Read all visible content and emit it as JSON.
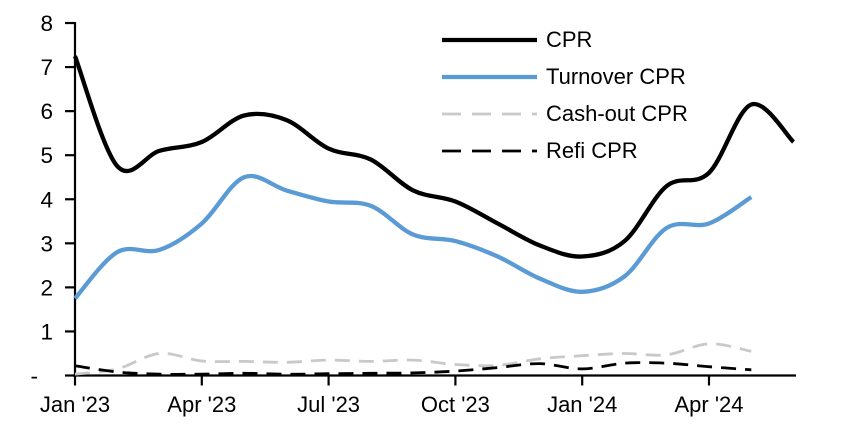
{
  "chart_data": {
    "type": "line",
    "title": "",
    "grid": false,
    "legend_position": "top-right-inside",
    "ylim": [
      0,
      8
    ],
    "y_tick_labels": [
      "8",
      "7",
      "6",
      "5",
      "4",
      "3",
      "2",
      "1",
      "-"
    ],
    "x_tick_labels": [
      "Jan '23",
      "Apr '23",
      "Jul '23",
      "Oct '23",
      "Jan '24",
      "Apr '24"
    ],
    "x_tick_month_indices": [
      0,
      3,
      6,
      9,
      12,
      15
    ],
    "x_months": [
      "Jan '23",
      "Feb '23",
      "Mar '23",
      "Apr '23",
      "May '23",
      "Jun '23",
      "Jul '23",
      "Aug '23",
      "Sep '23",
      "Oct '23",
      "Nov '23",
      "Dec '23",
      "Jan '24",
      "Feb '24",
      "Mar '24",
      "Apr '24",
      "May '24",
      "Jun '24"
    ],
    "axis_color": "#000000",
    "series": [
      {
        "name": "CPR",
        "color": "#000000",
        "style": "solid",
        "width": 4.3,
        "values": [
          7.25,
          4.75,
          5.1,
          5.3,
          5.9,
          5.8,
          5.15,
          4.9,
          4.2,
          3.95,
          3.45,
          2.95,
          2.7,
          3.05,
          4.3,
          4.6,
          6.15,
          5.3
        ]
      },
      {
        "name": "Turnover CPR",
        "color": "#5B9BD5",
        "style": "solid",
        "width": 4.3,
        "values": [
          1.75,
          2.8,
          2.85,
          3.45,
          4.5,
          4.2,
          3.95,
          3.85,
          3.2,
          3.05,
          2.7,
          2.2,
          1.9,
          2.25,
          3.35,
          3.45,
          4.05
        ]
      },
      {
        "name": "Cash-out CPR",
        "color": "#C9C9C9",
        "style": "dashed",
        "width": 2.8,
        "values": [
          0.03,
          0.15,
          0.5,
          0.33,
          0.32,
          0.3,
          0.35,
          0.32,
          0.35,
          0.25,
          0.23,
          0.38,
          0.45,
          0.5,
          0.47,
          0.72,
          0.55
        ]
      },
      {
        "name": "Refi CPR",
        "color": "#000000",
        "style": "dashed",
        "width": 2.8,
        "values": [
          0.22,
          0.08,
          0.03,
          0.03,
          0.05,
          0.03,
          0.04,
          0.05,
          0.06,
          0.1,
          0.18,
          0.27,
          0.15,
          0.28,
          0.28,
          0.2,
          0.13
        ]
      }
    ]
  }
}
